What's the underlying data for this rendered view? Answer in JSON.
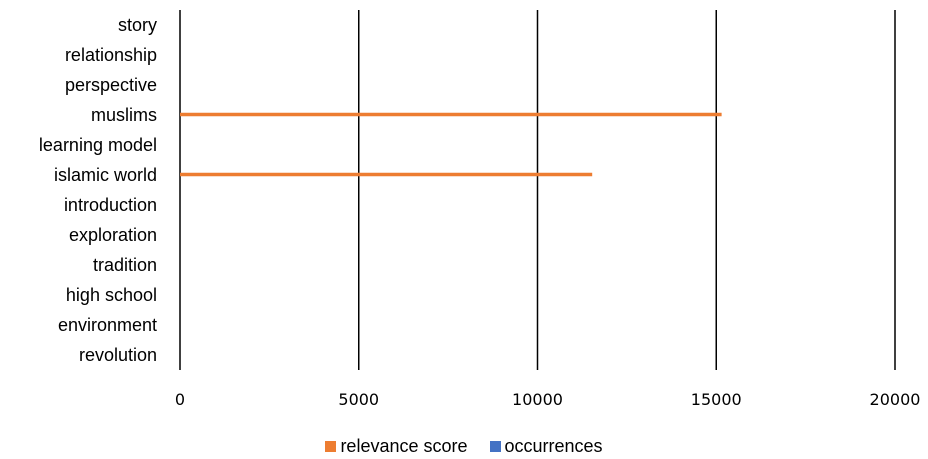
{
  "chart_data": {
    "type": "bar",
    "orientation": "horizontal",
    "categories": [
      "story",
      "relationship",
      "perspective",
      "muslims",
      "learning model",
      "islamic world",
      "introduction",
      "exploration",
      "tradition",
      "high school",
      "environment",
      "revolution"
    ],
    "x_ticks": [
      "0",
      "5000",
      "10000",
      "15000",
      "20000"
    ],
    "xlim": [
      0,
      20000
    ],
    "grid": "vertical",
    "legend_position": "bottom",
    "series": [
      {
        "name": "relevance score",
        "color": "#ED7D31",
        "values": [
          0,
          0,
          0,
          15150,
          0,
          11530,
          0,
          0,
          0,
          0,
          0,
          0
        ]
      },
      {
        "name": "occurrences",
        "color": "#4472C4",
        "values": [
          0,
          0,
          0,
          0,
          0,
          0,
          0,
          0,
          0,
          0,
          0,
          0
        ]
      }
    ]
  }
}
